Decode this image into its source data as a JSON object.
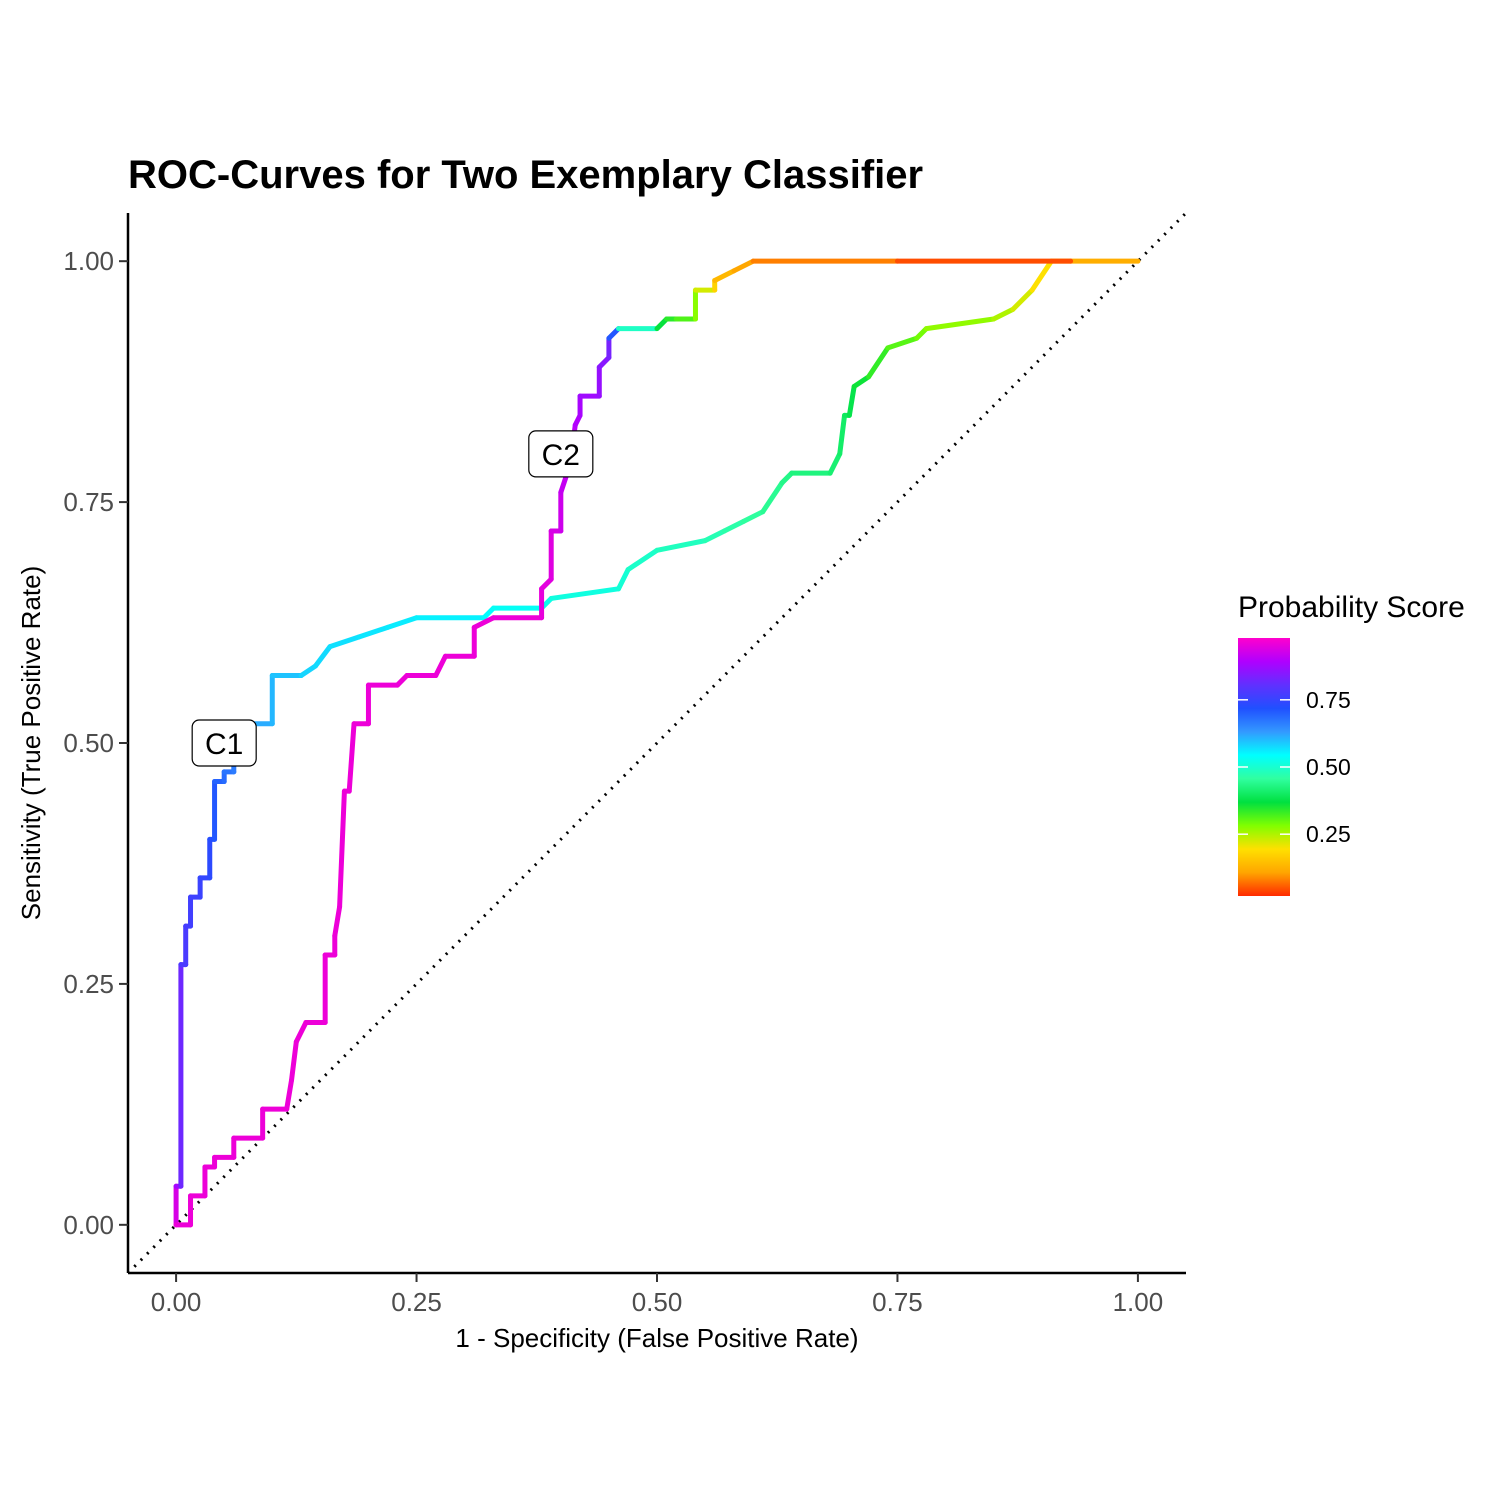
{
  "chart_data": {
    "type": "line",
    "title": "ROC-Curves for Two Exemplary Classifier",
    "xlabel": "1 - Specificity (False Positive Rate)",
    "ylabel": "Sensitivity (True Positive Rate)",
    "xlim": [
      -0.05,
      1.05
    ],
    "ylim": [
      -0.05,
      1.05
    ],
    "xticks": [
      0,
      0.25,
      0.5,
      0.75,
      1
    ],
    "xtick_labels": [
      "0.00",
      "0.25",
      "0.50",
      "0.75",
      "1.00"
    ],
    "yticks": [
      0,
      0.25,
      0.5,
      0.75,
      1
    ],
    "ytick_labels": [
      "0.00",
      "0.25",
      "0.50",
      "0.75",
      "1.00"
    ],
    "grid": false,
    "reference_line": {
      "style": "dotted",
      "from": [
        -0.05,
        -0.05
      ],
      "to": [
        1.05,
        1.05
      ]
    },
    "colorbar": {
      "title": "Probability Score",
      "range": [
        0.02,
        0.98
      ],
      "ticks": [
        0.25,
        0.5,
        0.75
      ],
      "tick_labels": [
        "0.25",
        "0.50",
        "0.75"
      ],
      "colors": [
        "#ff2a00",
        "#ffa500",
        "#ffe000",
        "#80ff00",
        "#00e040",
        "#30ffa0",
        "#00ffff",
        "#3399ff",
        "#2050ff",
        "#6030ff",
        "#b000ff",
        "#ff00cc"
      ],
      "placement": "right"
    },
    "series": [
      {
        "name": "C1",
        "label_at": [
          0.05,
          0.5
        ],
        "points": [
          [
            0.0,
            0.0,
            0.97
          ],
          [
            0.0,
            0.04,
            0.9
          ],
          [
            0.005,
            0.04,
            0.86
          ],
          [
            0.005,
            0.27,
            0.78
          ],
          [
            0.01,
            0.27,
            0.78
          ],
          [
            0.01,
            0.31,
            0.77
          ],
          [
            0.015,
            0.31,
            0.77
          ],
          [
            0.015,
            0.34,
            0.76
          ],
          [
            0.025,
            0.34,
            0.76
          ],
          [
            0.025,
            0.36,
            0.75
          ],
          [
            0.035,
            0.36,
            0.74
          ],
          [
            0.035,
            0.4,
            0.73
          ],
          [
            0.04,
            0.4,
            0.72
          ],
          [
            0.04,
            0.46,
            0.7
          ],
          [
            0.05,
            0.46,
            0.69
          ],
          [
            0.05,
            0.47,
            0.68
          ],
          [
            0.06,
            0.47,
            0.67
          ],
          [
            0.06,
            0.5,
            0.66
          ],
          [
            0.08,
            0.5,
            0.64
          ],
          [
            0.08,
            0.52,
            0.62
          ],
          [
            0.1,
            0.52,
            0.61
          ],
          [
            0.1,
            0.57,
            0.6
          ],
          [
            0.13,
            0.57,
            0.59
          ],
          [
            0.13,
            0.57,
            0.58
          ],
          [
            0.145,
            0.58,
            0.58
          ],
          [
            0.16,
            0.6,
            0.57
          ],
          [
            0.19,
            0.61,
            0.57
          ],
          [
            0.22,
            0.62,
            0.56
          ],
          [
            0.25,
            0.63,
            0.56
          ],
          [
            0.32,
            0.63,
            0.55
          ],
          [
            0.33,
            0.64,
            0.54
          ],
          [
            0.38,
            0.64,
            0.53
          ],
          [
            0.39,
            0.65,
            0.52
          ],
          [
            0.46,
            0.66,
            0.51
          ],
          [
            0.47,
            0.68,
            0.5
          ],
          [
            0.5,
            0.7,
            0.49
          ],
          [
            0.55,
            0.71,
            0.48
          ],
          [
            0.57,
            0.72,
            0.47
          ],
          [
            0.59,
            0.73,
            0.46
          ],
          [
            0.61,
            0.74,
            0.45
          ],
          [
            0.63,
            0.77,
            0.44
          ],
          [
            0.64,
            0.78,
            0.43
          ],
          [
            0.68,
            0.78,
            0.42
          ],
          [
            0.69,
            0.8,
            0.41
          ],
          [
            0.695,
            0.84,
            0.4
          ],
          [
            0.7,
            0.84,
            0.39
          ],
          [
            0.705,
            0.87,
            0.37
          ],
          [
            0.72,
            0.88,
            0.35
          ],
          [
            0.74,
            0.91,
            0.32
          ],
          [
            0.77,
            0.92,
            0.3
          ],
          [
            0.78,
            0.93,
            0.28
          ],
          [
            0.85,
            0.94,
            0.26
          ],
          [
            0.87,
            0.95,
            0.24
          ],
          [
            0.89,
            0.97,
            0.21
          ],
          [
            0.91,
            1.0,
            0.18
          ],
          [
            0.93,
            1.0,
            0.14
          ],
          [
            1.0,
            1.0,
            0.1
          ]
        ]
      },
      {
        "name": "C2",
        "label_at": [
          0.4,
          0.8
        ],
        "points": [
          [
            0.0,
            0.0,
            0.96
          ],
          [
            0.015,
            0.0,
            0.96
          ],
          [
            0.015,
            0.03,
            0.96
          ],
          [
            0.03,
            0.03,
            0.96
          ],
          [
            0.03,
            0.06,
            0.96
          ],
          [
            0.04,
            0.06,
            0.96
          ],
          [
            0.04,
            0.07,
            0.96
          ],
          [
            0.06,
            0.07,
            0.96
          ],
          [
            0.06,
            0.09,
            0.96
          ],
          [
            0.09,
            0.09,
            0.96
          ],
          [
            0.09,
            0.12,
            0.96
          ],
          [
            0.115,
            0.12,
            0.96
          ],
          [
            0.12,
            0.15,
            0.96
          ],
          [
            0.125,
            0.19,
            0.96
          ],
          [
            0.135,
            0.21,
            0.96
          ],
          [
            0.155,
            0.21,
            0.96
          ],
          [
            0.155,
            0.28,
            0.96
          ],
          [
            0.165,
            0.28,
            0.96
          ],
          [
            0.165,
            0.3,
            0.96
          ],
          [
            0.17,
            0.33,
            0.96
          ],
          [
            0.175,
            0.45,
            0.96
          ],
          [
            0.18,
            0.45,
            0.96
          ],
          [
            0.185,
            0.52,
            0.96
          ],
          [
            0.2,
            0.52,
            0.96
          ],
          [
            0.2,
            0.56,
            0.96
          ],
          [
            0.23,
            0.56,
            0.96
          ],
          [
            0.24,
            0.57,
            0.96
          ],
          [
            0.27,
            0.57,
            0.96
          ],
          [
            0.28,
            0.59,
            0.96
          ],
          [
            0.31,
            0.59,
            0.96
          ],
          [
            0.31,
            0.62,
            0.96
          ],
          [
            0.33,
            0.63,
            0.96
          ],
          [
            0.38,
            0.63,
            0.96
          ],
          [
            0.38,
            0.66,
            0.95
          ],
          [
            0.39,
            0.67,
            0.95
          ],
          [
            0.39,
            0.72,
            0.94
          ],
          [
            0.4,
            0.72,
            0.93
          ],
          [
            0.4,
            0.76,
            0.92
          ],
          [
            0.41,
            0.79,
            0.91
          ],
          [
            0.415,
            0.83,
            0.9
          ],
          [
            0.42,
            0.84,
            0.89
          ],
          [
            0.42,
            0.86,
            0.88
          ],
          [
            0.44,
            0.86,
            0.87
          ],
          [
            0.44,
            0.89,
            0.86
          ],
          [
            0.45,
            0.9,
            0.84
          ],
          [
            0.45,
            0.92,
            0.82
          ],
          [
            0.46,
            0.93,
            0.6
          ],
          [
            0.5,
            0.93,
            0.38
          ],
          [
            0.51,
            0.94,
            0.35
          ],
          [
            0.52,
            0.94,
            0.33
          ],
          [
            0.54,
            0.94,
            0.3
          ],
          [
            0.54,
            0.97,
            0.25
          ],
          [
            0.56,
            0.97,
            0.2
          ],
          [
            0.56,
            0.98,
            0.15
          ],
          [
            0.58,
            0.99,
            0.12
          ],
          [
            0.6,
            1.0,
            0.1
          ],
          [
            0.75,
            1.0,
            0.06
          ],
          [
            0.93,
            1.0,
            0.03
          ]
        ]
      }
    ]
  }
}
